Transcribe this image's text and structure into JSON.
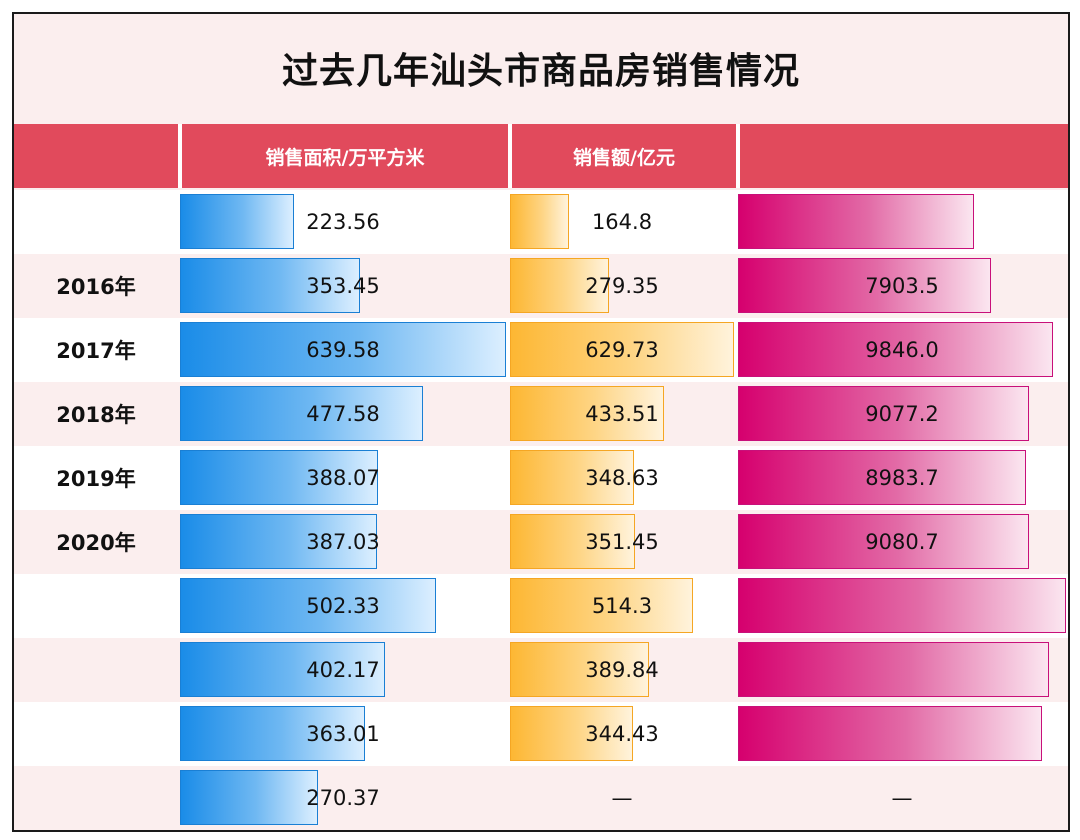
{
  "chart_data": {
    "type": "table",
    "title": "过去几年汕头市商品房销售情况",
    "columns": [
      "",
      "销售面积/万平方米",
      "销售额/亿元",
      ""
    ],
    "rows": [
      {
        "year": "",
        "area": 223.56,
        "area_label": "223.56",
        "sales": 164.8,
        "sales_label": "164.8",
        "price": 7372,
        "price_label": ""
      },
      {
        "year": "2016年",
        "area": 353.45,
        "area_label": "353.45",
        "sales": 279.35,
        "sales_label": "279.35",
        "price": 7903.5,
        "price_label": "7903.5"
      },
      {
        "year": "2017年",
        "area": 639.58,
        "area_label": "639.58",
        "sales": 629.73,
        "sales_label": "629.73",
        "price": 9846.0,
        "price_label": "9846.0"
      },
      {
        "year": "2018年",
        "area": 477.58,
        "area_label": "477.58",
        "sales": 433.51,
        "sales_label": "433.51",
        "price": 9077.2,
        "price_label": "9077.2"
      },
      {
        "year": "2019年",
        "area": 388.07,
        "area_label": "388.07",
        "sales": 348.63,
        "sales_label": "348.63",
        "price": 8983.7,
        "price_label": "8983.7"
      },
      {
        "year": "2020年",
        "area": 387.03,
        "area_label": "387.03",
        "sales": 351.45,
        "sales_label": "351.45",
        "price": 9080.7,
        "price_label": "9080.7"
      },
      {
        "year": "",
        "area": 502.33,
        "area_label": "502.33",
        "sales": 514.3,
        "sales_label": "514.3",
        "price": 10239,
        "price_label": ""
      },
      {
        "year": "",
        "area": 402.17,
        "area_label": "402.17",
        "sales": 389.84,
        "sales_label": "389.84",
        "price": 9693,
        "price_label": ""
      },
      {
        "year": "",
        "area": 363.01,
        "area_label": "363.01",
        "sales": 344.43,
        "sales_label": "344.43",
        "price": 9488,
        "price_label": ""
      },
      {
        "year": "",
        "area": 270.37,
        "area_label": "270.37",
        "sales": null,
        "sales_label": "—",
        "price": null,
        "price_label": "—"
      }
    ],
    "max": {
      "area": 639.58,
      "sales": 629.73,
      "price": 10239
    },
    "colors": {
      "area": "#1a8ce8",
      "sales": "#fdb733",
      "price": "#d6006e",
      "header": "#e14a5c"
    }
  }
}
